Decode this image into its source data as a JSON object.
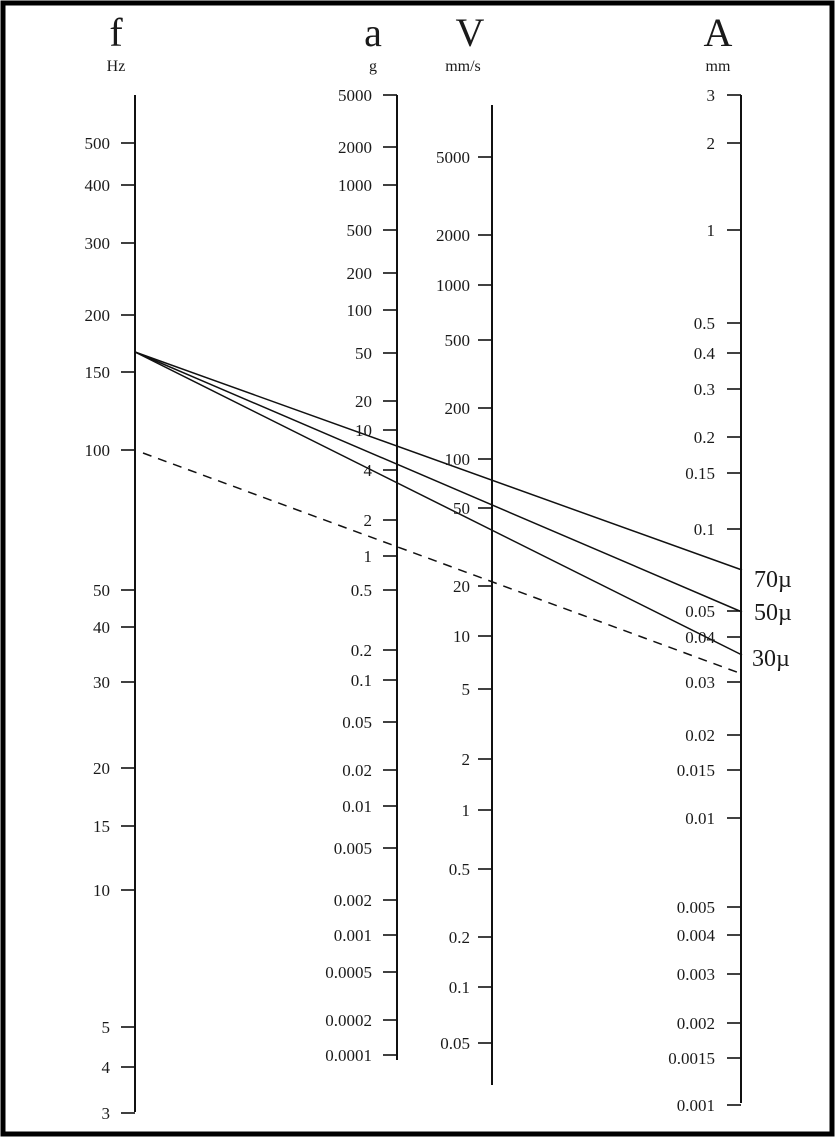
{
  "scales": {
    "f": {
      "symbol": "f",
      "unit": "Hz",
      "ticks": [
        "500",
        "400",
        "300",
        "200",
        "150",
        "100",
        "50",
        "40",
        "30",
        "20",
        "15",
        "10",
        "5",
        "4",
        "3"
      ]
    },
    "a": {
      "symbol": "a",
      "unit": "g",
      "ticks": [
        "5000",
        "2000",
        "1000",
        "500",
        "200",
        "100",
        "50",
        "20",
        "10",
        "4",
        "2",
        "1",
        "0.5",
        "0.2",
        "0.1",
        "0.05",
        "0.02",
        "0.01",
        "0.005",
        "0.002",
        "0.001",
        "0.0005",
        "0.0002",
        "0.0001"
      ]
    },
    "v": {
      "symbol": "V",
      "unit": "mm/s",
      "ticks": [
        "5000",
        "2000",
        "1000",
        "500",
        "200",
        "100",
        "50",
        "20",
        "10",
        "5",
        "2",
        "1",
        "0.5",
        "0.2",
        "0.1",
        "0.05"
      ]
    },
    "A": {
      "symbol": "A",
      "unit": "mm",
      "ticks": [
        "3",
        "2",
        "1",
        "0.5",
        "0.4",
        "0.3",
        "0.2",
        "0.15",
        "0.1",
        "0.05",
        "0.04",
        "0.03",
        "0.02",
        "0.015",
        "0.01",
        "0.005",
        "0.004",
        "0.003",
        "0.002",
        "0.0015",
        "0.001"
      ]
    }
  },
  "isolines": [
    {
      "label": "70µ",
      "style": "solid"
    },
    {
      "label": "50µ",
      "style": "solid"
    },
    {
      "label": "30µ",
      "style": "solid"
    },
    {
      "label": "",
      "style": "dashed"
    }
  ]
}
